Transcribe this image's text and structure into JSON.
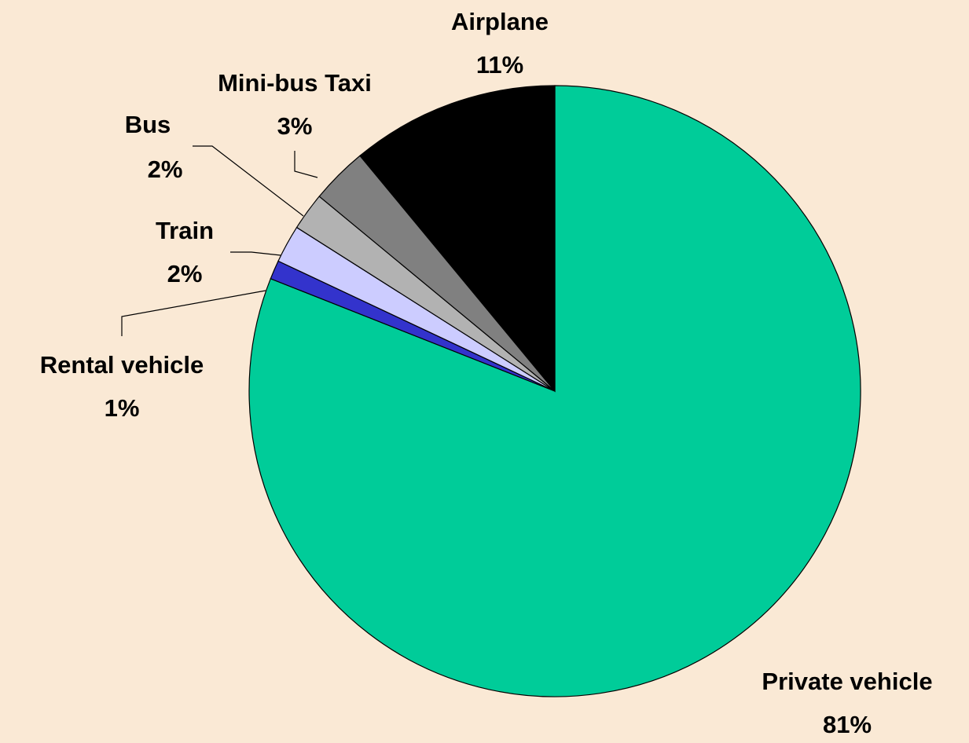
{
  "chart_data": {
    "type": "pie",
    "categories": [
      "Private vehicle",
      "Rental vehicle",
      "Train",
      "Bus",
      "Mini-bus Taxi",
      "Airplane"
    ],
    "values": [
      81,
      1,
      2,
      2,
      3,
      11
    ],
    "value_labels": [
      "81%",
      "1%",
      "2%",
      "2%",
      "3%",
      "11%"
    ],
    "colors": [
      "#00cc99",
      "#3333cc",
      "#ccccff",
      "#b2b2b2",
      "#808080",
      "#000000"
    ]
  }
}
